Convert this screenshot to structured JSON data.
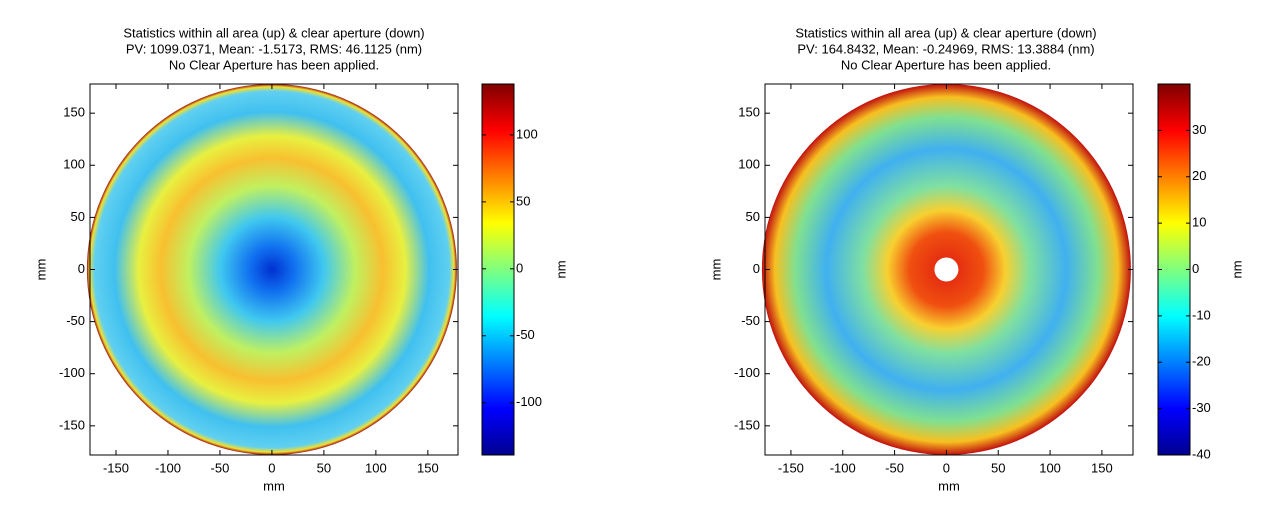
{
  "chart_data": [
    {
      "type": "surface-map",
      "title": [
        "Statistics within all area (up) & clear aperture (down)",
        "PV: 1099.0371, Mean: -1.5173, RMS: 46.1125 (nm)",
        "No Clear Aperture has been applied."
      ],
      "xlabel": "mm",
      "ylabel": "mm",
      "colorbar_label": "nm",
      "colormap": "jet",
      "xlim": [
        -175,
        179
      ],
      "ylim": [
        -178,
        178
      ],
      "xticks": [
        -150,
        -100,
        -50,
        0,
        50,
        100,
        150
      ],
      "yticks": [
        -150,
        -100,
        -50,
        0,
        50,
        100,
        150
      ],
      "clim": [
        -139,
        138
      ],
      "cticks": [
        -100,
        -50,
        0,
        50,
        100
      ]
    },
    {
      "type": "surface-map",
      "title": [
        "Statistics within all area (up) & clear aperture (down)",
        "PV: 164.8432, Mean: -0.24969, RMS: 13.3884 (nm)",
        "No Clear Aperture has been applied."
      ],
      "xlabel": "mm",
      "ylabel": "mm",
      "colorbar_label": "nm",
      "colormap": "jet",
      "xlim": [
        -175,
        180
      ],
      "ylim": [
        -178,
        178
      ],
      "xticks": [
        -150,
        -100,
        -50,
        0,
        50,
        100,
        150
      ],
      "yticks": [
        -150,
        -100,
        -50,
        0,
        50,
        100,
        150
      ],
      "clim": [
        -40,
        40
      ],
      "cticks": [
        -40,
        -30,
        -20,
        -10,
        0,
        10,
        20,
        30
      ]
    }
  ]
}
